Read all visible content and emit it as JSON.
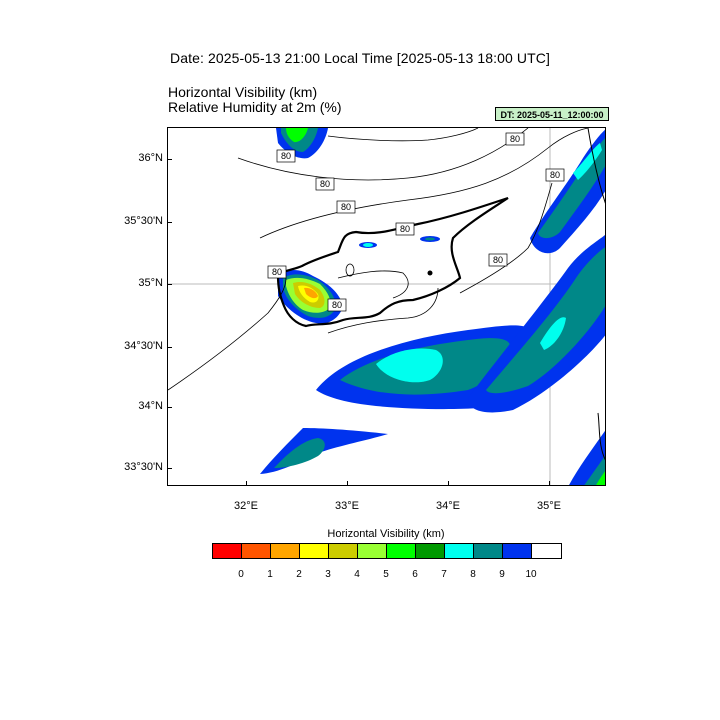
{
  "header": {
    "date_line": "Date: 2025-05-13  21:00 Local Time [2025-05-13  18:00 UTC]",
    "variable_1": "Horizontal Visibility   (km)",
    "variable_2": "Relative Humidity at 2m   (%)",
    "dt_badge": "DT: 2025-05-11_12:00:00"
  },
  "map": {
    "lat_labels": [
      "36°N",
      "35°30'N",
      "35°N",
      "34°30'N",
      "34°N",
      "33°30'N"
    ],
    "lon_labels": [
      "32°E",
      "33°E",
      "34°E",
      "35°E"
    ],
    "contour_labels": [
      "80",
      "80",
      "80",
      "80",
      "80",
      "80",
      "80",
      "80",
      "80"
    ]
  },
  "legend": {
    "title": "Horizontal Visibility  (km)",
    "ticks": [
      "0",
      "1",
      "2",
      "3",
      "4",
      "5",
      "6",
      "7",
      "8",
      "9",
      "10"
    ],
    "colors": [
      "#ff0000",
      "#ff5500",
      "#ffa500",
      "#ffff00",
      "#cccc00",
      "#99ff33",
      "#00ff00",
      "#009900",
      "#00ffee",
      "#008888",
      "#0033ee",
      "#ffffff"
    ]
  }
}
